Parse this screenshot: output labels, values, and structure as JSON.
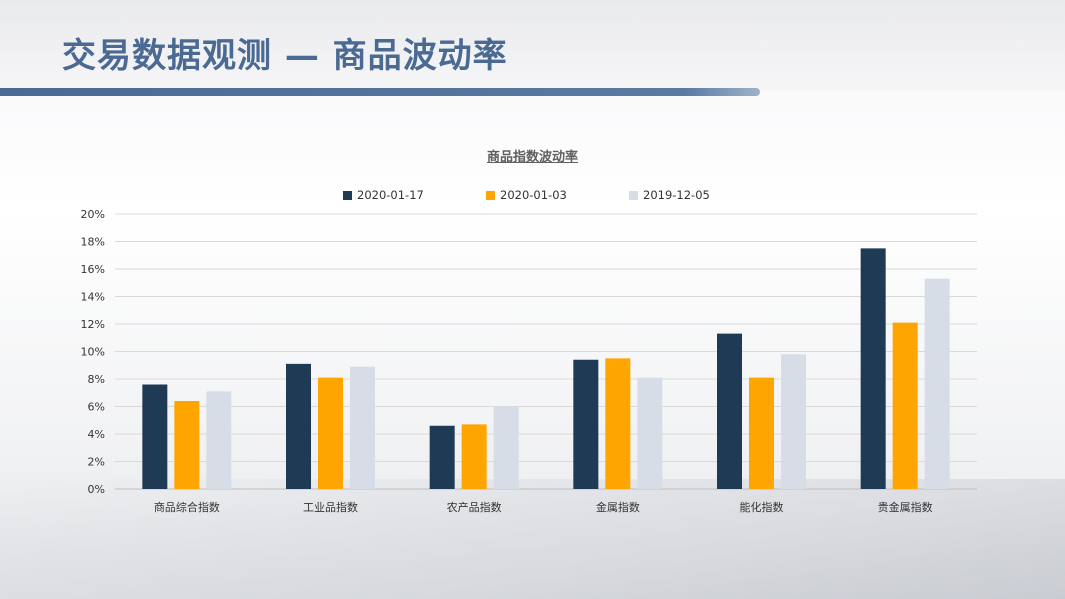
{
  "header": {
    "title": "交易数据观测 — 商品波动率"
  },
  "colors": {
    "series_1": "#1f3a54",
    "series_2": "#ffa500",
    "series_3": "#d6dde6",
    "grid": "#d9d9d9",
    "title": "#4a6a93"
  },
  "chart_data": {
    "type": "bar",
    "title": "商品指数波动率",
    "xlabel": "",
    "ylabel": "",
    "ylim": [
      0,
      0.2
    ],
    "y_ticks": [
      "0%",
      "2%",
      "4%",
      "6%",
      "8%",
      "10%",
      "12%",
      "14%",
      "16%",
      "18%",
      "20%"
    ],
    "grid": true,
    "legend_position": "top",
    "categories": [
      "商品综合指数",
      "工业品指数",
      "农产品指数",
      "金属指数",
      "能化指数",
      "贵金属指数"
    ],
    "series": [
      {
        "name": "2020-01-17",
        "values": [
          0.076,
          0.091,
          0.046,
          0.094,
          0.113,
          0.175
        ]
      },
      {
        "name": "2020-01-03",
        "values": [
          0.064,
          0.081,
          0.047,
          0.095,
          0.081,
          0.121
        ]
      },
      {
        "name": "2019-12-05",
        "values": [
          0.071,
          0.089,
          0.06,
          0.081,
          0.098,
          0.153
        ]
      }
    ]
  }
}
